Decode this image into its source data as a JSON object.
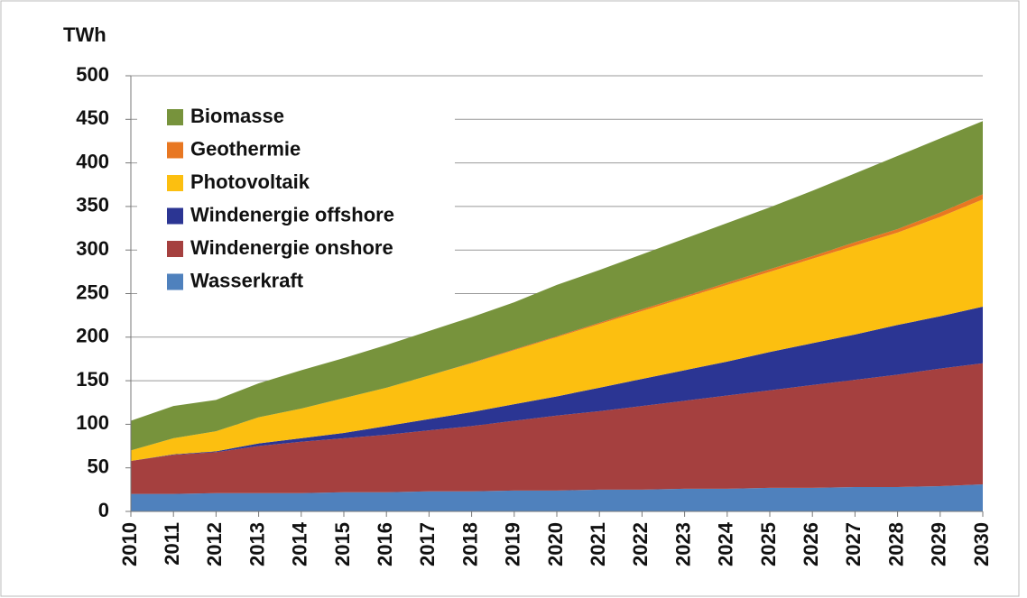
{
  "chart_data": {
    "type": "stacked_area",
    "y_label": "TWh",
    "x": [
      2010,
      2011,
      2012,
      2013,
      2014,
      2015,
      2016,
      2017,
      2018,
      2019,
      2020,
      2021,
      2022,
      2023,
      2024,
      2025,
      2026,
      2027,
      2028,
      2029,
      2030
    ],
    "xlim": [
      2010,
      2030
    ],
    "ylim": [
      0,
      500
    ],
    "yticks": [
      0,
      50,
      100,
      150,
      200,
      250,
      300,
      350,
      400,
      450,
      500
    ],
    "grid": true,
    "legend": "upper left",
    "series": [
      {
        "name": "Wasserkraft",
        "color": "#4f81bd",
        "values": [
          20,
          20,
          21,
          21,
          21,
          22,
          22,
          23,
          23,
          24,
          24,
          25,
          25,
          26,
          26,
          27,
          27,
          28,
          28,
          29,
          31
        ]
      },
      {
        "name": "Windenergie onshore",
        "color": "#a5403f",
        "values": [
          38,
          45,
          47,
          54,
          59,
          62,
          66,
          70,
          75,
          80,
          86,
          90,
          96,
          101,
          107,
          112,
          118,
          123,
          129,
          135,
          139
        ]
      },
      {
        "name": "Windenergie offshore",
        "color": "#2b3593",
        "values": [
          0,
          0.5,
          1,
          3,
          4,
          6,
          10,
          13,
          16,
          19,
          22,
          27,
          31,
          35,
          39,
          44,
          48,
          52,
          57,
          60,
          65
        ]
      },
      {
        "name": "Photovoltaik",
        "color": "#fcbf10",
        "values": [
          12,
          18.5,
          23,
          30,
          34,
          40,
          44,
          50,
          56,
          62,
          68,
          73,
          78,
          83,
          88,
          92,
          97,
          102,
          106,
          114,
          123
        ]
      },
      {
        "name": "Geothermie",
        "color": "#e87722",
        "values": [
          0,
          0,
          0,
          0,
          0,
          0,
          0,
          0,
          0.5,
          1,
          1,
          1.5,
          2,
          2,
          2.5,
          3,
          3,
          4,
          4,
          5,
          6
        ]
      },
      {
        "name": "Biomasse",
        "color": "#77933c",
        "values": [
          34,
          37,
          36,
          39,
          44,
          46,
          49,
          51,
          52.5,
          54,
          59,
          60.5,
          63,
          66,
          68.5,
          71,
          75,
          79,
          84,
          85,
          84
        ]
      }
    ]
  }
}
